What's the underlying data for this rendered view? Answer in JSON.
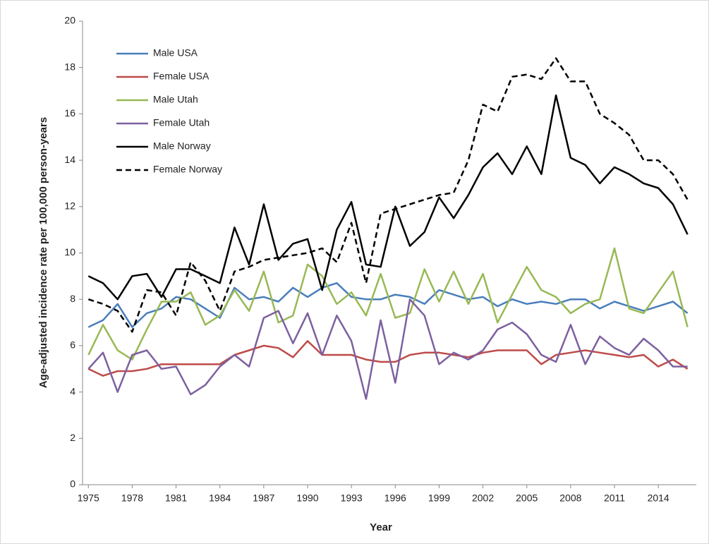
{
  "chart_data": {
    "type": "line",
    "x_label": "Year",
    "y_label": "Age-adjusted incidence rate per 100,000 person-years",
    "x": [
      1975,
      1976,
      1977,
      1978,
      1979,
      1980,
      1981,
      1982,
      1983,
      1984,
      1985,
      1986,
      1987,
      1988,
      1989,
      1990,
      1991,
      1992,
      1993,
      1994,
      1995,
      1996,
      1997,
      1998,
      1999,
      2000,
      2001,
      2002,
      2003,
      2004,
      2005,
      2006,
      2007,
      2008,
      2009,
      2010,
      2011,
      2012,
      2013,
      2014,
      2015,
      2016
    ],
    "xlim": [
      1974.6,
      2016.6
    ],
    "xticks": [
      1975,
      1978,
      1981,
      1984,
      1987,
      1990,
      1993,
      1996,
      1999,
      2002,
      2005,
      2008,
      2011,
      2014
    ],
    "ylim": [
      0,
      20
    ],
    "yticks": [
      0,
      2,
      4,
      6,
      8,
      10,
      12,
      14,
      16,
      18,
      20
    ],
    "legend": "upper-left",
    "series": [
      {
        "name": "Male USA",
        "color": "#4a7ebb",
        "line_style": "solid",
        "values": [
          6.8,
          7.1,
          7.8,
          6.8,
          7.4,
          7.6,
          8.1,
          8.0,
          7.6,
          7.2,
          8.5,
          8.0,
          8.1,
          7.9,
          8.5,
          8.1,
          8.5,
          8.7,
          8.1,
          8.0,
          8.0,
          8.2,
          8.1,
          7.8,
          8.4,
          8.2,
          8.0,
          8.1,
          7.7,
          8.0,
          7.8,
          7.9,
          7.8,
          8.0,
          8.0,
          7.6,
          7.9,
          7.7,
          7.5,
          7.7,
          7.9,
          7.4
        ]
      },
      {
        "name": "Female USA",
        "color": "#be4b48",
        "line_style": "solid",
        "values": [
          5.0,
          4.7,
          4.9,
          4.9,
          5.0,
          5.2,
          5.2,
          5.2,
          5.2,
          5.2,
          5.6,
          5.8,
          6.0,
          5.9,
          5.5,
          6.2,
          5.6,
          5.6,
          5.6,
          5.4,
          5.3,
          5.3,
          5.6,
          5.7,
          5.7,
          5.6,
          5.5,
          5.7,
          5.8,
          5.8,
          5.8,
          5.2,
          5.6,
          5.7,
          5.8,
          5.7,
          5.6,
          5.5,
          5.6,
          5.1,
          5.4,
          5.0
        ]
      },
      {
        "name": "Male Utah",
        "color": "#98b954",
        "line_style": "solid",
        "values": [
          5.6,
          6.9,
          5.8,
          5.4,
          6.7,
          7.9,
          7.9,
          8.3,
          6.9,
          7.3,
          8.4,
          7.5,
          9.2,
          7.0,
          7.3,
          9.5,
          9.0,
          7.8,
          8.3,
          7.3,
          9.1,
          7.2,
          7.4,
          9.3,
          7.9,
          9.2,
          7.8,
          9.1,
          7.0,
          8.2,
          9.4,
          8.4,
          8.1,
          7.4,
          7.8,
          8.0,
          10.2,
          7.6,
          7.4,
          8.3,
          9.2,
          6.8
        ]
      },
      {
        "name": "Female Utah",
        "color": "#7d60a0",
        "line_style": "solid",
        "values": [
          5.0,
          5.7,
          4.0,
          5.6,
          5.8,
          5.0,
          5.1,
          3.9,
          4.3,
          5.1,
          5.6,
          5.1,
          7.2,
          7.5,
          6.1,
          7.4,
          5.6,
          7.3,
          6.2,
          3.7,
          7.1,
          4.4,
          8.0,
          7.3,
          5.2,
          5.7,
          5.4,
          5.8,
          6.7,
          7.0,
          6.5,
          5.6,
          5.3,
          6.9,
          5.2,
          6.4,
          5.9,
          5.6,
          6.3,
          5.8,
          5.1,
          5.1
        ]
      },
      {
        "name": "Male Norway",
        "color": "#000000",
        "line_style": "solid",
        "values": [
          9.0,
          8.7,
          8.0,
          9.0,
          9.1,
          8.1,
          9.3,
          9.3,
          9.0,
          8.7,
          11.1,
          9.5,
          12.1,
          9.7,
          10.4,
          10.6,
          8.4,
          11.0,
          12.2,
          9.5,
          9.4,
          12.0,
          10.3,
          10.9,
          12.4,
          11.5,
          12.5,
          13.7,
          14.3,
          13.4,
          14.6,
          13.4,
          16.8,
          14.1,
          13.8,
          13.0,
          13.7,
          13.4,
          13.0,
          12.8,
          12.1,
          10.8
        ]
      },
      {
        "name": "Female Norway",
        "color": "#000000",
        "line_style": "dashed",
        "values": [
          8.0,
          7.8,
          7.5,
          6.6,
          8.4,
          8.3,
          7.3,
          9.6,
          8.8,
          7.5,
          9.2,
          9.4,
          9.7,
          9.8,
          9.9,
          10.0,
          10.2,
          9.6,
          11.3,
          8.7,
          11.7,
          11.9,
          12.1,
          12.3,
          12.5,
          12.6,
          14.0,
          16.4,
          16.1,
          17.6,
          17.7,
          17.5,
          18.4,
          17.4,
          17.4,
          16.0,
          15.6,
          15.1,
          14.0,
          14.0,
          13.4,
          12.3
        ]
      }
    ]
  }
}
